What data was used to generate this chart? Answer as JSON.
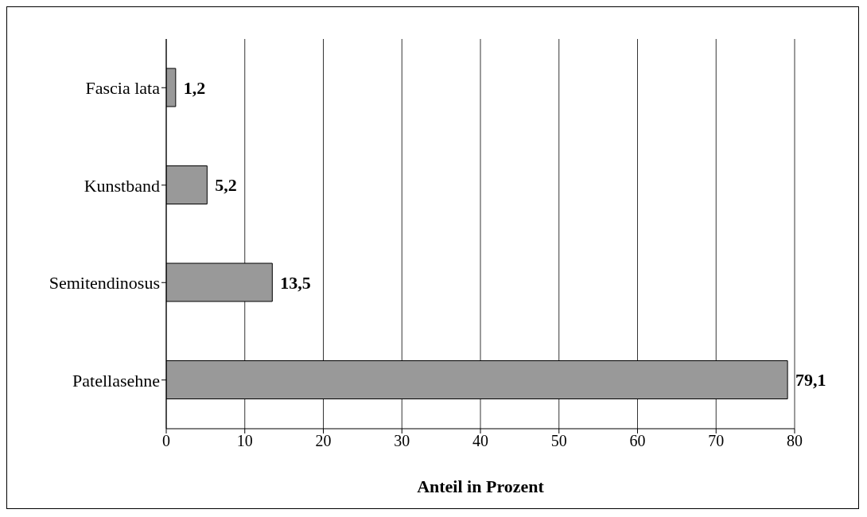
{
  "chart_data": {
    "type": "bar",
    "orientation": "horizontal",
    "xlabel": "Anteil in Prozent",
    "categories": [
      "Fascia lata",
      "Kunstband",
      "Semitendinosus",
      "Patellasehne"
    ],
    "values": [
      1.2,
      5.2,
      13.5,
      79.1
    ],
    "value_labels": [
      "1,2",
      "5,2",
      "13,5",
      "79,1"
    ],
    "color": "#999999",
    "xlim": [
      0,
      80
    ],
    "xticks": [
      0,
      10,
      20,
      30,
      40,
      50,
      60,
      70,
      80
    ],
    "grid": "x"
  }
}
